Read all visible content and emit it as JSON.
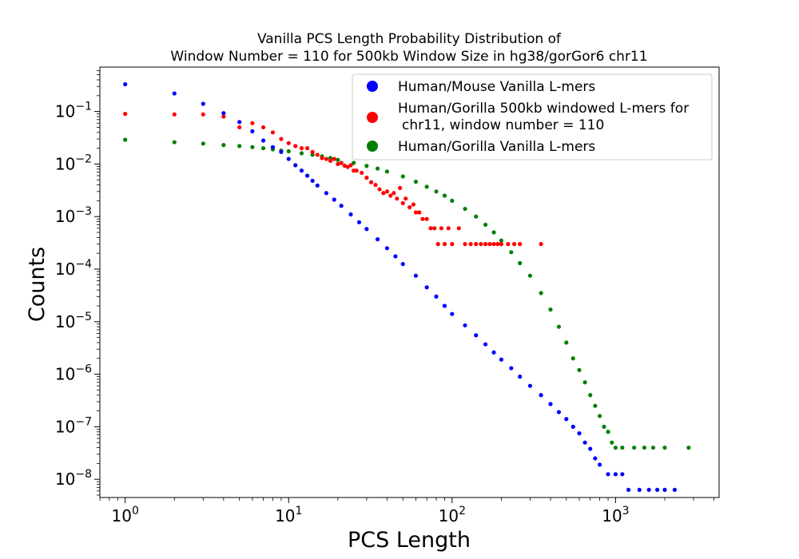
{
  "chart_data": {
    "type": "scatter",
    "title_line1": "Vanilla PCS Length Probability Distribution of",
    "title_line2": "Window Number = 110 for 500kb Window Size in hg38/gorGor6 chr11",
    "xlabel": "PCS Length",
    "ylabel": "Counts",
    "x_scale": "log",
    "y_scale": "log",
    "xlim": [
      0.7,
      4300
    ],
    "ylim": [
      4.5e-09,
      0.7
    ],
    "x_ticks": [
      {
        "value": 1,
        "base": "10",
        "exp": "0"
      },
      {
        "value": 10,
        "base": "10",
        "exp": "1"
      },
      {
        "value": 100,
        "base": "10",
        "exp": "2"
      },
      {
        "value": 1000,
        "base": "10",
        "exp": "3"
      }
    ],
    "y_ticks": [
      {
        "value": 1e-08,
        "base": "10",
        "exp": "−8"
      },
      {
        "value": 1e-07,
        "base": "10",
        "exp": "−7"
      },
      {
        "value": 1e-06,
        "base": "10",
        "exp": "−6"
      },
      {
        "value": 1e-05,
        "base": "10",
        "exp": "−5"
      },
      {
        "value": 0.0001,
        "base": "10",
        "exp": "−4"
      },
      {
        "value": 0.001,
        "base": "10",
        "exp": "−3"
      },
      {
        "value": 0.01,
        "base": "10",
        "exp": "−2"
      },
      {
        "value": 0.1,
        "base": "10",
        "exp": "−1"
      }
    ],
    "grid": false,
    "legend_placement": "upper-right",
    "series": [
      {
        "name": "Human/Mouse Vanilla L-mers",
        "color": "#0000ff",
        "points": [
          [
            1,
            0.33
          ],
          [
            2,
            0.22
          ],
          [
            3,
            0.14
          ],
          [
            4,
            0.093
          ],
          [
            5,
            0.063
          ],
          [
            6,
            0.042
          ],
          [
            7,
            0.028
          ],
          [
            8,
            0.021
          ],
          [
            9,
            0.017
          ],
          [
            10,
            0.0125
          ],
          [
            11,
            0.0095
          ],
          [
            12,
            0.0075
          ],
          [
            13,
            0.006
          ],
          [
            14,
            0.0048
          ],
          [
            15,
            0.0039
          ],
          [
            17,
            0.0028
          ],
          [
            19,
            0.0021
          ],
          [
            21,
            0.0016
          ],
          [
            24,
            0.0011
          ],
          [
            27,
            0.00078
          ],
          [
            30,
            0.00058
          ],
          [
            35,
            0.00037
          ],
          [
            40,
            0.00025
          ],
          [
            45,
            0.000175
          ],
          [
            50,
            0.000125
          ],
          [
            60,
            7.5e-05
          ],
          [
            70,
            4.5e-05
          ],
          [
            80,
            3e-05
          ],
          [
            90,
            2e-05
          ],
          [
            100,
            1.4e-05
          ],
          [
            120,
            8.5e-06
          ],
          [
            140,
            5.5e-06
          ],
          [
            160,
            3.7e-06
          ],
          [
            180,
            2.6e-06
          ],
          [
            200,
            1.9e-06
          ],
          [
            230,
            1.3e-06
          ],
          [
            260,
            9e-07
          ],
          [
            300,
            6e-07
          ],
          [
            350,
            4e-07
          ],
          [
            400,
            2.7e-07
          ],
          [
            450,
            1.9e-07
          ],
          [
            500,
            1.4e-07
          ],
          [
            550,
            1e-07
          ],
          [
            600,
            7.5e-08
          ],
          [
            650,
            5e-08
          ],
          [
            700,
            3.8e-08
          ],
          [
            750,
            2.5e-08
          ],
          [
            800,
            1.9e-08
          ],
          [
            900,
            1.25e-08
          ],
          [
            1000,
            1.25e-08
          ],
          [
            1100,
            1.25e-08
          ],
          [
            1200,
            6.3e-09
          ],
          [
            1400,
            6.3e-09
          ],
          [
            1600,
            6.3e-09
          ],
          [
            1800,
            6.3e-09
          ],
          [
            2000,
            6.3e-09
          ],
          [
            2300,
            6.3e-09
          ]
        ]
      },
      {
        "name": "Human/Gorilla 500kb windowed L-mers for chr11, window number = 110",
        "color": "#ff0000",
        "points": [
          [
            1,
            0.09
          ],
          [
            2,
            0.088
          ],
          [
            3,
            0.088
          ],
          [
            4,
            0.08
          ],
          [
            5,
            0.05
          ],
          [
            6,
            0.06
          ],
          [
            7,
            0.05
          ],
          [
            8,
            0.04
          ],
          [
            9,
            0.03
          ],
          [
            10,
            0.025
          ],
          [
            11,
            0.022
          ],
          [
            12,
            0.02
          ],
          [
            13,
            0.02
          ],
          [
            14,
            0.017
          ],
          [
            15,
            0.015
          ],
          [
            16,
            0.013
          ],
          [
            17,
            0.0125
          ],
          [
            18,
            0.0115
          ],
          [
            19,
            0.0125
          ],
          [
            20,
            0.01
          ],
          [
            21,
            0.0105
          ],
          [
            22,
            0.0093
          ],
          [
            23,
            0.0088
          ],
          [
            24,
            0.0095
          ],
          [
            25,
            0.0075
          ],
          [
            26,
            0.0075
          ],
          [
            28,
            0.0068
          ],
          [
            30,
            0.0055
          ],
          [
            32,
            0.0045
          ],
          [
            34,
            0.004
          ],
          [
            36,
            0.0033
          ],
          [
            38,
            0.0028
          ],
          [
            40,
            0.003
          ],
          [
            42,
            0.0025
          ],
          [
            44,
            0.0028
          ],
          [
            46,
            0.0022
          ],
          [
            48,
            0.0035
          ],
          [
            50,
            0.0018
          ],
          [
            52,
            0.0022
          ],
          [
            55,
            0.0015
          ],
          [
            58,
            0.0017
          ],
          [
            60,
            0.0012
          ],
          [
            63,
            0.0012
          ],
          [
            66,
            0.0009
          ],
          [
            70,
            0.0009
          ],
          [
            74,
            0.0006
          ],
          [
            78,
            0.0006
          ],
          [
            82,
            0.0003
          ],
          [
            86,
            0.0006
          ],
          [
            90,
            0.0003
          ],
          [
            95,
            0.0006
          ],
          [
            100,
            0.0003
          ],
          [
            110,
            0.0006
          ],
          [
            120,
            0.0003
          ],
          [
            130,
            0.0003
          ],
          [
            140,
            0.0003
          ],
          [
            150,
            0.0003
          ],
          [
            160,
            0.0003
          ],
          [
            170,
            0.0003
          ],
          [
            180,
            0.0003
          ],
          [
            190,
            0.0003
          ],
          [
            200,
            0.0003
          ],
          [
            220,
            0.0003
          ],
          [
            240,
            0.0003
          ],
          [
            260,
            0.0003
          ],
          [
            350,
            0.0003
          ]
        ]
      },
      {
        "name": "Human/Gorilla Vanilla L-mers",
        "color": "#008000",
        "points": [
          [
            1,
            0.029
          ],
          [
            2,
            0.026
          ],
          [
            3,
            0.0245
          ],
          [
            4,
            0.023
          ],
          [
            5,
            0.022
          ],
          [
            6,
            0.021
          ],
          [
            7,
            0.02
          ],
          [
            8,
            0.019
          ],
          [
            9,
            0.018
          ],
          [
            10,
            0.0175
          ],
          [
            12,
            0.016
          ],
          [
            14,
            0.015
          ],
          [
            16,
            0.014
          ],
          [
            18,
            0.013
          ],
          [
            20,
            0.012
          ],
          [
            25,
            0.0105
          ],
          [
            30,
            0.0092
          ],
          [
            35,
            0.0082
          ],
          [
            40,
            0.0072
          ],
          [
            50,
            0.0058
          ],
          [
            60,
            0.0046
          ],
          [
            70,
            0.0037
          ],
          [
            80,
            0.003
          ],
          [
            90,
            0.0025
          ],
          [
            100,
            0.002
          ],
          [
            120,
            0.0014
          ],
          [
            140,
            0.001
          ],
          [
            160,
            0.0007
          ],
          [
            180,
            0.0005
          ],
          [
            200,
            0.00035
          ],
          [
            230,
            0.00021
          ],
          [
            260,
            0.00013
          ],
          [
            300,
            7.5e-05
          ],
          [
            350,
            3.5e-05
          ],
          [
            400,
            1.7e-05
          ],
          [
            450,
            8e-06
          ],
          [
            500,
            4e-06
          ],
          [
            550,
            2e-06
          ],
          [
            600,
            1.2e-06
          ],
          [
            650,
            7e-07
          ],
          [
            700,
            4e-07
          ],
          [
            750,
            2.5e-07
          ],
          [
            800,
            1.6e-07
          ],
          [
            850,
            1e-07
          ],
          [
            900,
            8e-08
          ],
          [
            950,
            5e-08
          ],
          [
            1000,
            4e-08
          ],
          [
            1100,
            4e-08
          ],
          [
            1300,
            4e-08
          ],
          [
            1500,
            4e-08
          ],
          [
            1700,
            4e-08
          ],
          [
            2000,
            4e-08
          ],
          [
            2800,
            4e-08
          ]
        ]
      }
    ]
  }
}
